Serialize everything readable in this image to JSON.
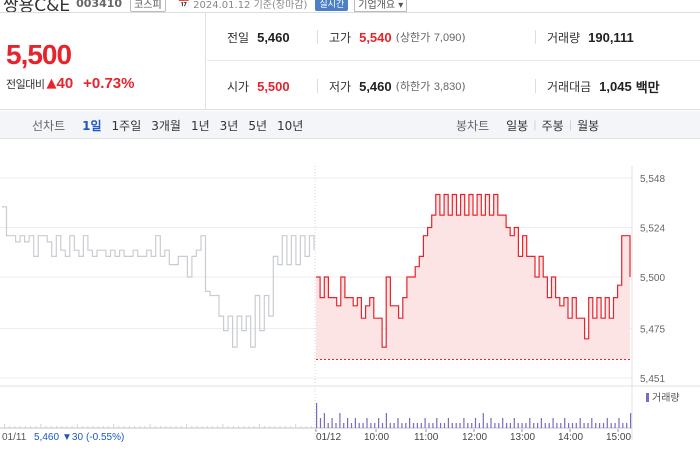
{
  "header": {
    "stock_name": "쌍용C&E",
    "stock_code": "003410",
    "market_badge": "코스피",
    "date_label": "2024.01.12 기준(장마감)",
    "realtime_badge": "실시간",
    "company_button": "기업개요"
  },
  "summary": {
    "price": "5,500",
    "change_label": "전일대비",
    "change_value": "40",
    "change_percent": "+0.73%",
    "prev_close_label": "전일",
    "prev_close": "5,460",
    "high_label": "고가",
    "high": "5,540",
    "upper_limit_label": "상한가",
    "upper_limit": "7,090",
    "volume_label": "거래량",
    "volume": "190,111",
    "open_label": "시가",
    "open": "5,500",
    "low_label": "저가",
    "low": "5,460",
    "lower_limit_label": "하한가",
    "lower_limit": "3,830",
    "amount_label": "거래대금",
    "amount": "1,045",
    "amount_unit": "백만"
  },
  "tabs": {
    "line_chart_label": "선차트",
    "periods": [
      "1일",
      "1주일",
      "3개월",
      "1년",
      "3년",
      "5년",
      "10년"
    ],
    "active_period": "1일",
    "candle_label": "봉차트",
    "candles": [
      "일봉",
      "주봉",
      "월봉"
    ]
  },
  "colors": {
    "up": "#e8232c",
    "area": "#fde4e4",
    "prev_line": "#c9ccd2",
    "active_tab": "#1f56c6"
  },
  "chart_data": {
    "type": "line",
    "y_ticks": [
      "5,548",
      "5,524",
      "5,500",
      "5,475",
      "5,451"
    ],
    "ylim": [
      5451,
      5548
    ],
    "volume_label": "거래량",
    "prev_day_label": "01/11",
    "prev_day_close": "5,460",
    "prev_day_change": "▼30",
    "prev_day_pct": "(-0.55%)",
    "x_ticks": [
      "01/12",
      "10:00",
      "11:00",
      "12:00",
      "13:00",
      "14:00",
      "15:00"
    ],
    "series": [
      {
        "values": [
          5534,
          5520,
          5520,
          5517,
          5520,
          5517,
          5520,
          5510,
          5520,
          5520,
          5517,
          5510,
          5520,
          5513,
          5510,
          5520,
          5513,
          5510,
          5520,
          5513,
          5510,
          5513,
          5513,
          5510,
          5513,
          5510,
          5513,
          5510,
          5510,
          5513,
          5510,
          5510,
          5513,
          5510,
          5520,
          5510,
          5513,
          5506,
          5506,
          5510,
          5510,
          5500,
          5510,
          5513,
          5520,
          5493,
          5491,
          5491,
          5481,
          5474,
          5481,
          5466,
          5481,
          5474,
          5481,
          5466,
          5491,
          5474,
          5491,
          5481,
          5510,
          5506,
          5520,
          5506,
          5520,
          5506,
          5520,
          5510,
          5520,
          5513
        ]
      },
      {
        "values": [
          5500,
          5490,
          5500,
          5490,
          5490,
          5486,
          5500,
          5490,
          5490,
          5486,
          5490,
          5480,
          5486,
          5490,
          5480,
          5480,
          5466,
          5500,
          5486,
          5486,
          5480,
          5490,
          5500,
          5500,
          5505,
          5510,
          5520,
          5524,
          5530,
          5540,
          5530,
          5540,
          5530,
          5540,
          5530,
          5540,
          5530,
          5540,
          5530,
          5540,
          5530,
          5540,
          5530,
          5540,
          5530,
          5530,
          5524,
          5520,
          5524,
          5510,
          5520,
          5510,
          5510,
          5500,
          5510,
          5500,
          5490,
          5500,
          5490,
          5486,
          5490,
          5480,
          5490,
          5480,
          5480,
          5470,
          5490,
          5480,
          5490,
          5480,
          5490,
          5480,
          5490,
          5496,
          5520,
          5520,
          5500
        ]
      }
    ],
    "volumes": [
      5,
      2,
      3,
      1,
      2,
      1,
      3,
      1,
      2,
      1,
      2,
      1,
      1,
      2,
      1,
      1,
      2,
      1,
      3,
      1,
      1,
      2,
      1,
      1,
      2,
      1,
      1,
      1,
      2,
      1,
      1,
      2,
      1,
      1,
      2,
      1,
      1,
      1,
      2,
      1,
      1,
      2,
      1,
      3,
      1,
      2,
      1,
      1,
      2,
      1,
      1,
      2,
      1,
      1,
      1,
      2,
      1,
      1,
      2,
      1,
      1,
      2,
      1,
      1,
      2,
      1,
      1,
      1,
      2,
      1,
      1,
      2,
      1,
      1,
      1,
      2,
      1,
      1,
      2,
      1,
      1,
      3
    ]
  }
}
